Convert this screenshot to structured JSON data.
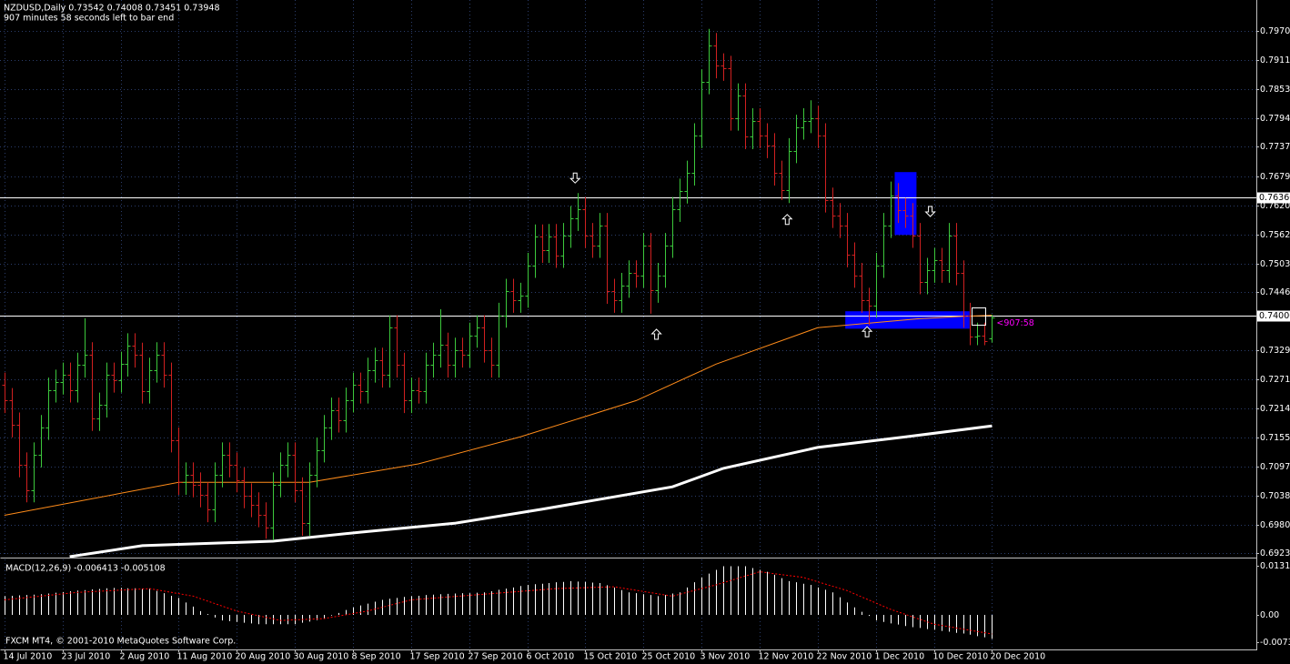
{
  "chart_data": [
    {
      "type": "ohlc",
      "title": "NZDUSD,Daily  0.73542 0.74008 0.73451 0.73948",
      "subtitle": "907 minutes 58 seconds left to bar end",
      "footer": "FXCM MT4, © 2001-2010 MetaQuotes Software Corp.",
      "timer_label": "<907:58",
      "bull_color": "#3cc83c",
      "bear_color": "#d02020",
      "grid": true,
      "xlim": [
        -0.6,
        172.4
      ],
      "ylim": [
        0.6916,
        0.8032
      ],
      "xticks": [
        {
          "value": 0,
          "label": "14 Jul 2010"
        },
        {
          "value": 8,
          "label": "23 Jul 2010"
        },
        {
          "value": 16,
          "label": "2 Aug 2010"
        },
        {
          "value": 24,
          "label": "11 Aug 2010"
        },
        {
          "value": 32,
          "label": "20 Aug 2010"
        },
        {
          "value": 40,
          "label": "30 Aug 2010"
        },
        {
          "value": 48,
          "label": "8 Sep 2010"
        },
        {
          "value": 56,
          "label": "17 Sep 2010"
        },
        {
          "value": 64,
          "label": "27 Sep 2010"
        },
        {
          "value": 72,
          "label": "6 Oct 2010"
        },
        {
          "value": 80,
          "label": "15 Oct 2010"
        },
        {
          "value": 88,
          "label": "25 Oct 2010"
        },
        {
          "value": 96,
          "label": "3 Nov 2010"
        },
        {
          "value": 104,
          "label": "12 Nov 2010"
        },
        {
          "value": 112,
          "label": "22 Nov 2010"
        },
        {
          "value": 120,
          "label": "1 Dec 2010"
        },
        {
          "value": 128,
          "label": "10 Dec 2010"
        },
        {
          "value": 136,
          "label": "20 Dec 2010"
        }
      ],
      "yticks": [
        {
          "value": 0.797,
          "label": "0.79700"
        },
        0.79115,
        {
          "value": 0.7853,
          "label": "0.78530"
        },
        0.77945,
        0.77375,
        {
          "value": 0.7679,
          "label": "0.76790"
        },
        0.76205,
        {
          "value": 0.7562,
          "label": "0.75620"
        },
        0.75035,
        0.74465,
        0.73295,
        {
          "value": 0.7271,
          "label": "0.72710"
        },
        {
          "value": 0.7214,
          "label": "0.72140"
        },
        0.71555,
        {
          "value": 0.7097,
          "label": "0.70970"
        },
        0.70385,
        {
          "value": 0.698,
          "label": "0.69800"
        },
        {
          "value": 0.6923,
          "label": "0.69230"
        }
      ],
      "open": [
        0.726,
        0.7229,
        0.718,
        0.71,
        0.705,
        0.712,
        0.7175,
        0.725,
        0.7266,
        0.728,
        0.725,
        0.73,
        0.7321,
        0.7193,
        0.722,
        0.728,
        0.727,
        0.7302,
        0.7339,
        0.732,
        0.7248,
        0.729,
        0.7321,
        0.728,
        0.715,
        0.7065,
        0.708,
        0.706,
        0.704,
        0.701,
        0.708,
        0.712,
        0.71,
        0.707,
        0.7038,
        0.702,
        0.7,
        0.6974,
        0.706,
        0.71,
        0.712,
        0.705,
        0.6983,
        0.708,
        0.713,
        0.7175,
        0.721,
        0.719,
        0.723,
        0.726,
        0.7248,
        0.729,
        0.731,
        0.728,
        0.7375,
        0.73,
        0.7229,
        0.725,
        0.7248,
        0.73,
        0.732,
        0.734,
        0.73,
        0.733,
        0.732,
        0.736,
        0.7375,
        0.733,
        0.73,
        0.74,
        0.7448,
        0.743,
        0.744,
        0.75,
        0.7557,
        0.753,
        0.7558,
        0.752,
        0.756,
        0.7594,
        0.7612,
        0.756,
        0.754,
        0.758,
        0.7448,
        0.743,
        0.746,
        0.7485,
        0.748,
        0.754,
        0.745,
        0.748,
        0.754,
        0.7612,
        0.7649,
        0.7685,
        0.776,
        0.7868,
        0.7941,
        0.79,
        0.7895,
        0.7795,
        0.784,
        0.7758,
        0.779,
        0.776,
        0.774,
        0.7685,
        0.765,
        0.773,
        0.7777,
        0.779,
        0.7795,
        0.776,
        0.7631,
        0.76,
        0.758,
        0.7521,
        0.748,
        0.743,
        0.742,
        0.75,
        0.758,
        0.764,
        0.761,
        0.76,
        0.756,
        0.7467,
        0.749,
        0.751,
        0.749,
        0.756,
        0.7485,
        0.74,
        0.7357,
        0.736,
        0.73542
      ],
      "high": [
        0.7285,
        0.7254,
        0.7205,
        0.7125,
        0.7145,
        0.72,
        0.7275,
        0.7291,
        0.7305,
        0.7305,
        0.7325,
        0.7394,
        0.7346,
        0.7245,
        0.7305,
        0.7305,
        0.7327,
        0.7364,
        0.7364,
        0.7345,
        0.7315,
        0.7346,
        0.7346,
        0.7305,
        0.7175,
        0.7105,
        0.7105,
        0.7085,
        0.7065,
        0.7105,
        0.7145,
        0.7145,
        0.7125,
        0.7095,
        0.7063,
        0.7045,
        0.7025,
        0.7085,
        0.7125,
        0.7145,
        0.7145,
        0.7075,
        0.7105,
        0.7155,
        0.72,
        0.7235,
        0.7235,
        0.7255,
        0.7285,
        0.7285,
        0.7315,
        0.7335,
        0.7335,
        0.74,
        0.74,
        0.7325,
        0.7275,
        0.7275,
        0.7325,
        0.7345,
        0.7412,
        0.7365,
        0.7355,
        0.7355,
        0.7385,
        0.74,
        0.74,
        0.7355,
        0.7425,
        0.7473,
        0.7473,
        0.7465,
        0.7525,
        0.7582,
        0.7582,
        0.7583,
        0.7583,
        0.7585,
        0.7619,
        0.7645,
        0.7637,
        0.7585,
        0.7605,
        0.7605,
        0.7473,
        0.7485,
        0.751,
        0.751,
        0.7565,
        0.7565,
        0.7505,
        0.7565,
        0.7637,
        0.7674,
        0.771,
        0.7785,
        0.7893,
        0.7974,
        0.7966,
        0.7925,
        0.792,
        0.7865,
        0.7865,
        0.7815,
        0.7815,
        0.7785,
        0.7765,
        0.771,
        0.7755,
        0.7802,
        0.7815,
        0.7831,
        0.782,
        0.7785,
        0.7656,
        0.7625,
        0.7605,
        0.7546,
        0.7505,
        0.7455,
        0.7525,
        0.7605,
        0.7668,
        0.7665,
        0.7635,
        0.7625,
        0.7585,
        0.7515,
        0.7535,
        0.7535,
        0.7585,
        0.7585,
        0.751,
        0.7425,
        0.7385,
        0.7385,
        0.74008
      ],
      "low": [
        0.7204,
        0.7155,
        0.7075,
        0.7025,
        0.7025,
        0.7095,
        0.715,
        0.7225,
        0.7241,
        0.7225,
        0.7225,
        0.7275,
        0.7168,
        0.7168,
        0.7195,
        0.7245,
        0.7245,
        0.7277,
        0.7295,
        0.7223,
        0.7223,
        0.7265,
        0.7255,
        0.7125,
        0.704,
        0.704,
        0.7035,
        0.7015,
        0.6985,
        0.6985,
        0.7055,
        0.7075,
        0.7045,
        0.7013,
        0.6995,
        0.6975,
        0.6952,
        0.6949,
        0.7035,
        0.7075,
        0.7025,
        0.6958,
        0.6958,
        0.7055,
        0.7105,
        0.715,
        0.7165,
        0.7165,
        0.7205,
        0.7223,
        0.7223,
        0.7265,
        0.7255,
        0.7255,
        0.7275,
        0.7204,
        0.7204,
        0.7223,
        0.7223,
        0.7275,
        0.7295,
        0.7275,
        0.7275,
        0.7295,
        0.7295,
        0.7335,
        0.7305,
        0.7275,
        0.7275,
        0.7375,
        0.7405,
        0.7405,
        0.7415,
        0.7475,
        0.7505,
        0.7505,
        0.7495,
        0.7495,
        0.7535,
        0.7569,
        0.7535,
        0.7515,
        0.7515,
        0.7423,
        0.7405,
        0.7405,
        0.7435,
        0.7455,
        0.7455,
        0.7403,
        0.7425,
        0.7455,
        0.7515,
        0.7587,
        0.7624,
        0.766,
        0.7735,
        0.7843,
        0.7875,
        0.787,
        0.777,
        0.777,
        0.7733,
        0.7733,
        0.7735,
        0.7715,
        0.766,
        0.7631,
        0.7625,
        0.7705,
        0.7752,
        0.7765,
        0.7735,
        0.7606,
        0.7575,
        0.7555,
        0.7496,
        0.7455,
        0.7405,
        0.738,
        0.7395,
        0.7475,
        0.7555,
        0.7585,
        0.7575,
        0.7535,
        0.7442,
        0.7442,
        0.7465,
        0.7465,
        0.7465,
        0.746,
        0.7375,
        0.734,
        0.734,
        0.734,
        0.73451
      ],
      "close": [
        0.7229,
        0.718,
        0.71,
        0.705,
        0.712,
        0.7175,
        0.725,
        0.7266,
        0.728,
        0.725,
        0.73,
        0.7321,
        0.7193,
        0.722,
        0.728,
        0.727,
        0.7302,
        0.7339,
        0.732,
        0.7248,
        0.729,
        0.7321,
        0.728,
        0.715,
        0.7065,
        0.708,
        0.706,
        0.704,
        0.701,
        0.708,
        0.712,
        0.71,
        0.707,
        0.7038,
        0.702,
        0.7,
        0.6974,
        0.706,
        0.71,
        0.712,
        0.705,
        0.6983,
        0.708,
        0.713,
        0.7175,
        0.721,
        0.719,
        0.723,
        0.726,
        0.7248,
        0.729,
        0.731,
        0.728,
        0.7375,
        0.73,
        0.7229,
        0.725,
        0.7248,
        0.73,
        0.732,
        0.734,
        0.73,
        0.733,
        0.732,
        0.736,
        0.7375,
        0.733,
        0.73,
        0.74,
        0.7448,
        0.743,
        0.744,
        0.75,
        0.7557,
        0.753,
        0.7558,
        0.752,
        0.756,
        0.7594,
        0.7612,
        0.756,
        0.754,
        0.758,
        0.7448,
        0.743,
        0.746,
        0.7485,
        0.748,
        0.754,
        0.745,
        0.748,
        0.754,
        0.7612,
        0.7649,
        0.7685,
        0.776,
        0.7868,
        0.7941,
        0.79,
        0.7895,
        0.7795,
        0.784,
        0.7758,
        0.779,
        0.776,
        0.774,
        0.7685,
        0.765,
        0.773,
        0.7777,
        0.779,
        0.7795,
        0.776,
        0.7631,
        0.76,
        0.758,
        0.7521,
        0.748,
        0.743,
        0.742,
        0.75,
        0.758,
        0.764,
        0.761,
        0.76,
        0.756,
        0.7467,
        0.749,
        0.751,
        0.749,
        0.756,
        0.7485,
        0.74,
        0.7357,
        0.736,
        0.7348,
        0.73948
      ],
      "lines": [
        {
          "color": "#ff8c1a",
          "width": 1,
          "x": [
            0,
            24,
            42,
            57,
            71,
            87,
            98,
            112,
            126,
            132,
            136
          ],
          "values": [
            0.6999,
            0.7065,
            0.7065,
            0.7102,
            0.7156,
            0.7229,
            0.7302,
            0.7375,
            0.7393,
            0.7398,
            0.74
          ]
        },
        {
          "color": "#ffffff",
          "width": 3,
          "x": [
            9,
            19,
            37,
            49,
            62,
            74,
            92,
            99,
            112,
            124,
            136
          ],
          "values": [
            0.6916,
            0.6938,
            0.6947,
            0.6965,
            0.6983,
            0.7011,
            0.7056,
            0.7093,
            0.7135,
            0.7156,
            0.7178
          ]
        }
      ],
      "hlines": [
        {
          "value": 0.7636,
          "label": "0.76360"
        },
        {
          "value": 0.74,
          "label": "0.74000"
        }
      ],
      "rectangles": [
        {
          "x": [
            122.6,
            125.6
          ],
          "y": [
            0.7687,
            0.7561
          ],
          "color": "#0000ff"
        },
        {
          "x": [
            115.8,
            132.9
          ],
          "y": [
            0.7408,
            0.7373
          ],
          "color": "#0000ff"
        }
      ],
      "arrows": [
        {
          "dir": "down",
          "x": 78.6,
          "y": 0.7676
        },
        {
          "dir": "down",
          "x": 127.5,
          "y": 0.7609
        },
        {
          "dir": "up",
          "x": 89.8,
          "y": 0.7361
        },
        {
          "dir": "up",
          "x": 107.8,
          "y": 0.7591
        },
        {
          "dir": "up",
          "x": 118.8,
          "y": 0.7366
        }
      ]
    },
    {
      "type": "macd",
      "title": "MACD(12,26,9) -0.006413 -0.005108",
      "xlim": [
        -0.6,
        172.4
      ],
      "ylim": [
        -0.00925,
        0.01481
      ],
      "yticks": [
        0.01314,
        {
          "value": 0,
          "label": "0.00"
        },
        -0.00734
      ],
      "hist_color": "#ffffff",
      "values": [
        0.005,
        0.0051,
        0.0052,
        0.0053,
        0.0054,
        0.0055,
        0.0057,
        0.0059,
        0.0061,
        0.0063,
        0.0065,
        0.0066,
        0.0068,
        0.0069,
        0.0071,
        0.0072,
        0.0072,
        0.0071,
        0.0071,
        0.007,
        0.007,
        0.0064,
        0.0058,
        0.0051,
        0.0045,
        0.0033,
        0.0022,
        0.001,
        0.0002,
        -0.0007,
        -0.0015,
        -0.0017,
        -0.0019,
        -0.0021,
        -0.0023,
        -0.0025,
        -0.0025,
        -0.0025,
        -0.0025,
        -0.0025,
        -0.0025,
        -0.0021,
        -0.0018,
        -0.0014,
        -0.001,
        -0.0002,
        0.0005,
        0.0013,
        0.002,
        0.0025,
        0.003,
        0.0035,
        0.004,
        0.0043,
        0.0045,
        0.0048,
        0.005,
        0.0051,
        0.0053,
        0.0054,
        0.0055,
        0.0056,
        0.0057,
        0.0058,
        0.0058,
        0.0059,
        0.006,
        0.0063,
        0.0067,
        0.007,
        0.0073,
        0.0077,
        0.008,
        0.0082,
        0.0083,
        0.0085,
        0.0087,
        0.0088,
        0.009,
        0.0089,
        0.0088,
        0.0086,
        0.0085,
        0.0079,
        0.0073,
        0.0066,
        0.006,
        0.0058,
        0.0055,
        0.0053,
        0.005,
        0.0053,
        0.0057,
        0.006,
        0.0073,
        0.0087,
        0.01,
        0.011,
        0.012,
        0.013,
        0.013,
        0.013,
        0.013,
        0.0125,
        0.012,
        0.0115,
        0.0107,
        0.0098,
        0.009,
        0.0087,
        0.0083,
        0.008,
        0.0073,
        0.0067,
        0.006,
        0.0047,
        0.0033,
        0.002,
        0.0008,
        -0.0003,
        -0.0015,
        -0.0019,
        -0.0023,
        -0.0026,
        -0.003,
        -0.0033,
        -0.0035,
        -0.0038,
        -0.004,
        -0.0043,
        -0.0045,
        -0.0048,
        -0.005,
        -0.0053,
        -0.0057,
        -0.006,
        -0.006413
      ],
      "signal": {
        "color": "#ff0000",
        "x": [
          0,
          10,
          20,
          26,
          32,
          38,
          44,
          50,
          56,
          66,
          76,
          84,
          92,
          98,
          104,
          110,
          116,
          122,
          128,
          136
        ],
        "values": [
          0.004,
          0.006,
          0.007,
          0.005,
          0.001,
          -0.0015,
          -0.001,
          0.001,
          0.004,
          0.0055,
          0.007,
          0.0075,
          0.005,
          0.008,
          0.0115,
          0.01,
          0.0065,
          0.0015,
          -0.0025,
          -0.005108
        ]
      }
    }
  ]
}
